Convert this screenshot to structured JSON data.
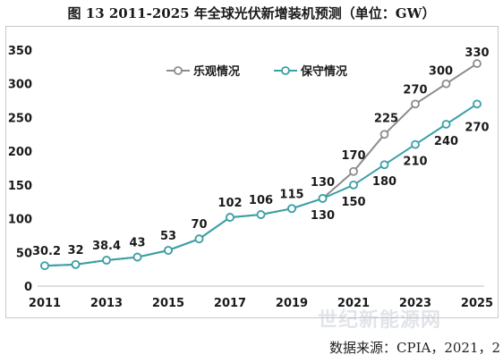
{
  "figure_title": "图 13 2011-2025 年全球光伏新增装机预测（单位：GW）",
  "source_text": "数据来源：CPIA，2021，2",
  "watermark_text": "世纪新能源网",
  "colors": {
    "optimistic": "#8c8c8c",
    "conservative": "#3aa0a8",
    "axis": "#bfbfbf",
    "text": "#1a1a1a"
  },
  "chart_data": {
    "type": "line",
    "title": "",
    "xlabel": "",
    "ylabel": "",
    "x": [
      2011,
      2012,
      2013,
      2014,
      2015,
      2016,
      2017,
      2018,
      2019,
      2020,
      2021,
      2022,
      2023,
      2024,
      2025
    ],
    "x_tick_labels": [
      "2011",
      "2013",
      "2015",
      "2017",
      "2019",
      "2021",
      "2023",
      "2025"
    ],
    "x_tick_values": [
      2011,
      2013,
      2015,
      2017,
      2019,
      2021,
      2023,
      2025
    ],
    "ylim": [
      0,
      350
    ],
    "y_ticks": [
      0,
      50,
      100,
      150,
      200,
      250,
      300,
      350
    ],
    "grid": false,
    "legend_position": "top-center",
    "series": [
      {
        "name": "乐观情况",
        "color": "#8c8c8c",
        "values": [
          30.2,
          32,
          38.4,
          43,
          53,
          70,
          102,
          106,
          115,
          130,
          170,
          225,
          270,
          300,
          330
        ],
        "labels": [
          "30.2",
          "32",
          "38.4",
          "43",
          "53",
          "70",
          "102",
          "106",
          "115",
          "130",
          "170",
          "225",
          "270",
          "300",
          "330"
        ]
      },
      {
        "name": "保守情况",
        "color": "#3aa0a8",
        "values": [
          30.2,
          32,
          38.4,
          43,
          53,
          70,
          102,
          106,
          115,
          130,
          150,
          180,
          210,
          240,
          270
        ],
        "labels": [
          "",
          "",
          "",
          "",
          "",
          "",
          "",
          "",
          "",
          "130",
          "150",
          "180",
          "210",
          "240",
          "270"
        ]
      }
    ]
  }
}
